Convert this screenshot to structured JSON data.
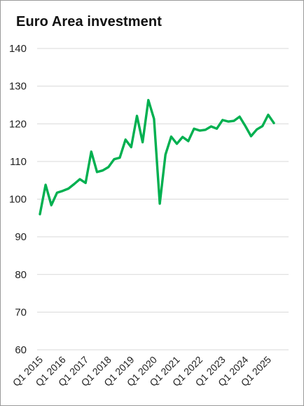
{
  "chart_data": {
    "type": "line",
    "title": "Euro Area investment",
    "xlabel": "",
    "ylabel": "",
    "ylim": [
      60,
      140
    ],
    "yticks": [
      60,
      70,
      80,
      90,
      100,
      110,
      120,
      130,
      140
    ],
    "grid": "horizontal",
    "legend": "none",
    "x_tick_labels": [
      "Q1 2015",
      "Q1 2016",
      "Q1 2017",
      "Q1 2018",
      "Q1 2019",
      "Q1 2020",
      "Q1 2021",
      "Q1 2022",
      "Q1 2023",
      "Q1 2024",
      "Q1 2025"
    ],
    "x_tick_positions": [
      0,
      4,
      8,
      12,
      16,
      20,
      24,
      28,
      32,
      36,
      40
    ],
    "series": [
      {
        "color": "#00b050",
        "x": [
          "Q1 2015",
          "Q2 2015",
          "Q3 2015",
          "Q4 2015",
          "Q1 2016",
          "Q2 2016",
          "Q3 2016",
          "Q4 2016",
          "Q1 2017",
          "Q2 2017",
          "Q3 2017",
          "Q4 2017",
          "Q1 2018",
          "Q2 2018",
          "Q3 2018",
          "Q4 2018",
          "Q1 2019",
          "Q2 2019",
          "Q3 2019",
          "Q4 2019",
          "Q1 2020",
          "Q2 2020",
          "Q3 2020",
          "Q4 2020",
          "Q1 2021",
          "Q2 2021",
          "Q3 2021",
          "Q4 2021",
          "Q1 2022",
          "Q2 2022",
          "Q3 2022",
          "Q4 2022",
          "Q1 2023",
          "Q2 2023",
          "Q3 2023",
          "Q4 2023",
          "Q1 2024",
          "Q2 2024",
          "Q3 2024",
          "Q4 2024",
          "Q1 2025",
          "Q2 2025"
        ],
        "values": [
          96.0,
          103.8,
          98.4,
          101.7,
          102.2,
          102.8,
          104.0,
          105.3,
          104.3,
          112.6,
          107.2,
          107.6,
          108.5,
          110.6,
          111.0,
          115.8,
          113.8,
          122.1,
          115.1,
          126.3,
          121.3,
          98.8,
          111.8,
          116.6,
          114.7,
          116.5,
          115.4,
          118.7,
          118.2,
          118.4,
          119.3,
          118.7,
          121.0,
          120.6,
          120.8,
          121.9,
          119.4,
          116.7,
          118.5,
          119.4,
          122.4,
          120.2
        ]
      }
    ]
  }
}
